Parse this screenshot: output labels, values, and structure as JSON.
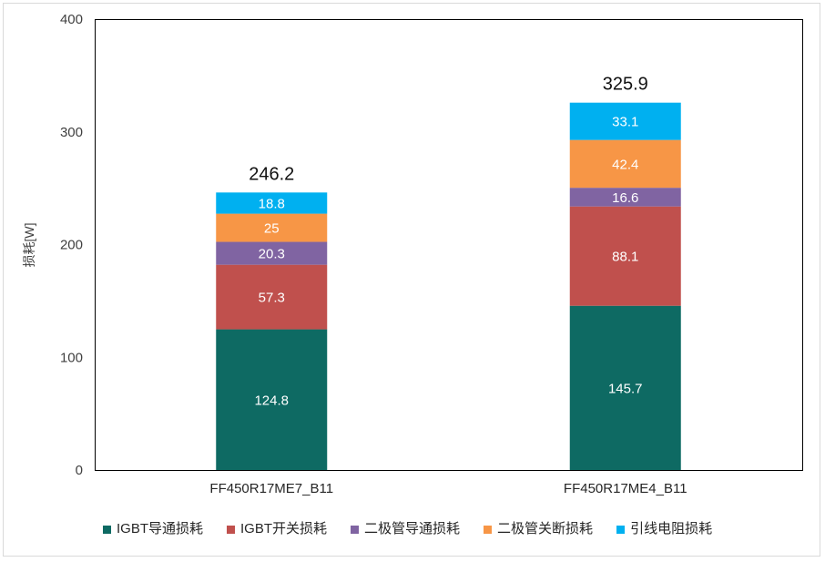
{
  "chart_data": {
    "type": "bar",
    "stacked": true,
    "categories": [
      "FF450R17ME7_B11",
      "FF450R17ME4_B11"
    ],
    "series": [
      {
        "name": "IGBT导通损耗",
        "values": [
          124.8,
          145.7
        ],
        "color": "#0e6a63"
      },
      {
        "name": "IGBT开关损耗",
        "values": [
          57.3,
          88.1
        ],
        "color": "#c0504d"
      },
      {
        "name": "二极管导通损耗",
        "values": [
          20.3,
          16.6
        ],
        "color": "#8064a2"
      },
      {
        "name": "二极管关断损耗",
        "values": [
          25,
          42.4
        ],
        "color": "#f79646"
      },
      {
        "name": "引线电阻损耗",
        "values": [
          18.8,
          33.1
        ],
        "color": "#00b0f0"
      }
    ],
    "totals": [
      246.2,
      325.9
    ],
    "ylabel": "损耗[W]",
    "ylim": [
      0,
      400
    ],
    "yticks": [
      0,
      100,
      200,
      300,
      400
    ],
    "grid": false,
    "legend": "bottom"
  }
}
